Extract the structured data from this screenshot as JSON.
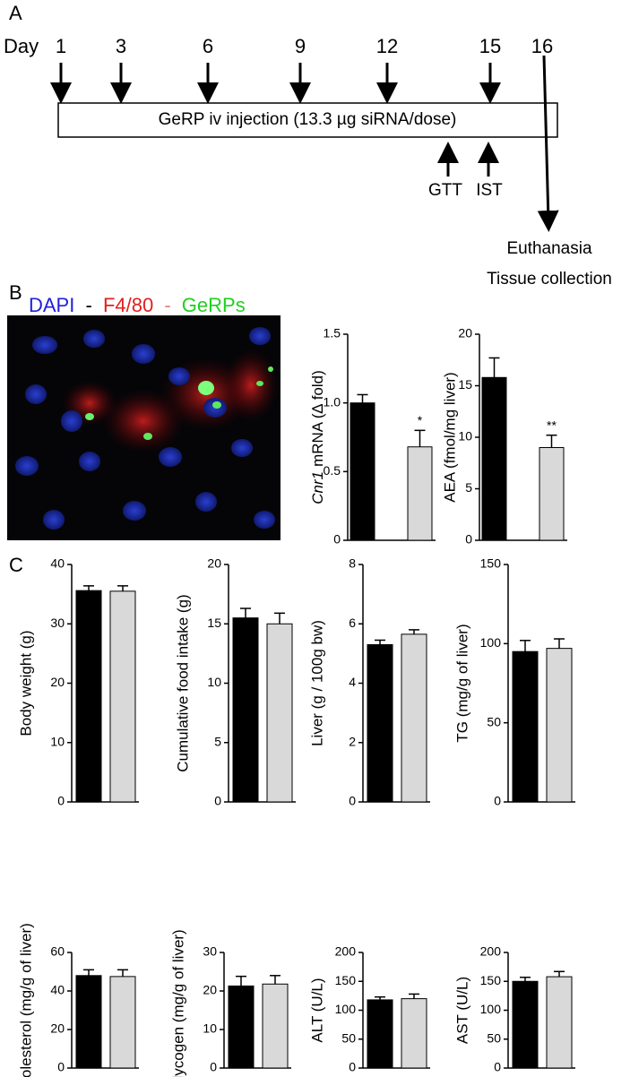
{
  "panel_labels": [
    "A",
    "B",
    "C"
  ],
  "timeline": {
    "day_label": "Day",
    "days": [
      "1",
      "3",
      "6",
      "9",
      "12",
      "15",
      "16"
    ],
    "box_text": "GeRP iv injection (13.3 µg siRNA/dose)",
    "tests": [
      "GTT",
      "IST"
    ],
    "end_lines": [
      "Euthanasia",
      "Tissue collection"
    ]
  },
  "image_legend": [
    "DAPI",
    "-",
    "F4/80",
    "-",
    "GeRPs"
  ],
  "chart_data": [
    {
      "type": "bar",
      "ylabel_italic": "Cnr1",
      "ylabel": "mRNA (∆ fold)",
      "categories": [
        null,
        null
      ],
      "values": [
        1.0,
        0.68
      ],
      "errors": [
        0.06,
        0.12
      ],
      "annotations": [
        null,
        "*"
      ],
      "colors": [
        "#000000",
        "#d9d9d9"
      ],
      "ylim": [
        0,
        1.5
      ],
      "yticks": [
        0,
        0.5,
        {
          "value": 1,
          "label": "1.0"
        },
        1.5
      ]
    },
    {
      "type": "bar",
      "ylabel": "AEA (fmol/mg liver)",
      "categories": [
        null,
        null
      ],
      "values": [
        15.8,
        9.0
      ],
      "errors": [
        1.9,
        1.2
      ],
      "annotations": [
        null,
        "**"
      ],
      "colors": [
        "#000000",
        "#d9d9d9"
      ],
      "ylim": [
        0,
        20
      ],
      "yticks": [
        0,
        5,
        10,
        15,
        20
      ]
    },
    {
      "type": "bar",
      "ylabel": "Body weight (g)",
      "categories": [
        null,
        null
      ],
      "values": [
        35.6,
        35.5
      ],
      "errors": [
        0.8,
        0.9
      ],
      "colors": [
        "#000000",
        "#d9d9d9"
      ],
      "ylim": [
        0,
        40
      ],
      "yticks": [
        0,
        10,
        20,
        30,
        40
      ]
    },
    {
      "type": "bar",
      "ylabel": "Cumulative food intake (g)",
      "categories": [
        null,
        null
      ],
      "values": [
        15.5,
        15.0
      ],
      "errors": [
        0.8,
        0.9
      ],
      "colors": [
        "#000000",
        "#d9d9d9"
      ],
      "ylim": [
        0,
        20
      ],
      "yticks": [
        0,
        5,
        10,
        15,
        20
      ]
    },
    {
      "type": "bar",
      "ylabel": "Liver (g / 100g bw)",
      "categories": [
        null,
        null
      ],
      "values": [
        5.3,
        5.65
      ],
      "errors": [
        0.15,
        0.15
      ],
      "colors": [
        "#000000",
        "#d9d9d9"
      ],
      "ylim": [
        0,
        8
      ],
      "yticks": [
        0,
        2,
        4,
        6,
        8
      ]
    },
    {
      "type": "bar",
      "ylabel": "TG (mg/g of liver)",
      "categories": [
        null,
        null
      ],
      "values": [
        95,
        97
      ],
      "errors": [
        7,
        6
      ],
      "colors": [
        "#000000",
        "#d9d9d9"
      ],
      "ylim": [
        0,
        150
      ],
      "yticks": [
        0,
        50,
        100,
        150
      ]
    },
    {
      "type": "bar",
      "ylabel": "Cholesterol (mg/g of liver)",
      "categories": [
        null,
        null
      ],
      "values": [
        48,
        47.5
      ],
      "errors": [
        3,
        3.5
      ],
      "colors": [
        "#000000",
        "#d9d9d9"
      ],
      "ylim": [
        0,
        60
      ],
      "yticks": [
        0,
        20,
        40,
        60
      ]
    },
    {
      "type": "bar",
      "ylabel": "Glycogen (mg/g of liver)",
      "categories": [
        null,
        null
      ],
      "values": [
        21.3,
        21.8
      ],
      "errors": [
        2.5,
        2.2
      ],
      "colors": [
        "#000000",
        "#d9d9d9"
      ],
      "ylim": [
        0,
        30
      ],
      "yticks": [
        0,
        10,
        20,
        30
      ]
    },
    {
      "type": "bar",
      "ylabel": "ALT (U/L)",
      "categories": [
        null,
        null
      ],
      "values": [
        118,
        120
      ],
      "errors": [
        5,
        8
      ],
      "colors": [
        "#000000",
        "#d9d9d9"
      ],
      "ylim": [
        0,
        200
      ],
      "yticks": [
        0,
        50,
        100,
        150,
        200
      ]
    },
    {
      "type": "bar",
      "ylabel": "AST (U/L)",
      "categories": [
        null,
        null
      ],
      "values": [
        150,
        158
      ],
      "errors": [
        7,
        9
      ],
      "colors": [
        "#000000",
        "#d9d9d9"
      ],
      "ylim": [
        0,
        200
      ],
      "yticks": [
        0,
        50,
        100,
        150,
        200
      ]
    }
  ]
}
